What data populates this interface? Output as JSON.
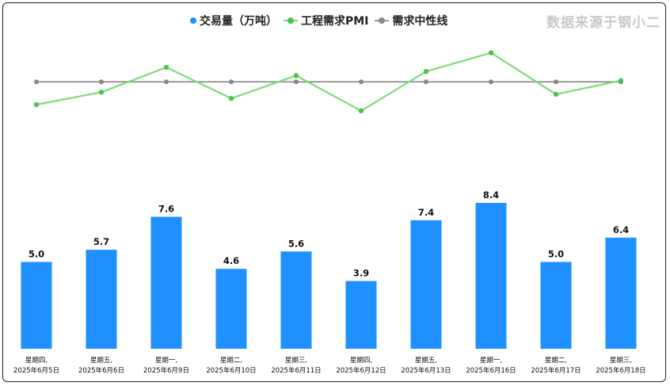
{
  "watermark": "数据来源于钢小二",
  "colors": {
    "bar": "#1e90ff",
    "pmi_line": "#7ddc7a",
    "pmi_point": "#4cc34a",
    "neutral_line": "#999999",
    "neutral_point": "#888888"
  },
  "chart_data": {
    "type": "bar",
    "categories": [
      [
        "星期四,",
        "2025年6月5日"
      ],
      [
        "星期五,",
        "2025年6月6日"
      ],
      [
        "星期一,",
        "2025年6月9日"
      ],
      [
        "星期二,",
        "2025年6月10日"
      ],
      [
        "星期三,",
        "2025年6月11日"
      ],
      [
        "星期四,",
        "2025年6月12日"
      ],
      [
        "星期五,",
        "2025年6月13日"
      ],
      [
        "星期一,",
        "2025年6月16日"
      ],
      [
        "星期二,",
        "2025年6月17日"
      ],
      [
        "星期三,",
        "2025年6月18日"
      ]
    ],
    "series": [
      {
        "name": "交易量（万吨）",
        "type": "bar",
        "values": [
          5.0,
          5.7,
          7.6,
          4.6,
          5.6,
          3.9,
          7.4,
          8.4,
          5.0,
          6.4
        ],
        "labels": [
          "5.0",
          "5.7",
          "7.6",
          "4.6",
          "5.6",
          "3.9",
          "7.4",
          "8.4",
          "5.0",
          "6.4"
        ]
      },
      {
        "name": "工程需求PMI",
        "type": "line",
        "values": [
          44.5,
          47.5,
          53.5,
          46.0,
          51.5,
          43.0,
          52.5,
          57.0,
          47.0,
          50.3
        ]
      },
      {
        "name": "需求中性线",
        "type": "line",
        "values": [
          50,
          50,
          50,
          50,
          50,
          50,
          50,
          50,
          50,
          50
        ]
      }
    ],
    "bar_axis_max": 10.5,
    "line_axis_range": [
      31.5,
      64.0
    ],
    "legend_position": "top-center",
    "grid": false
  }
}
